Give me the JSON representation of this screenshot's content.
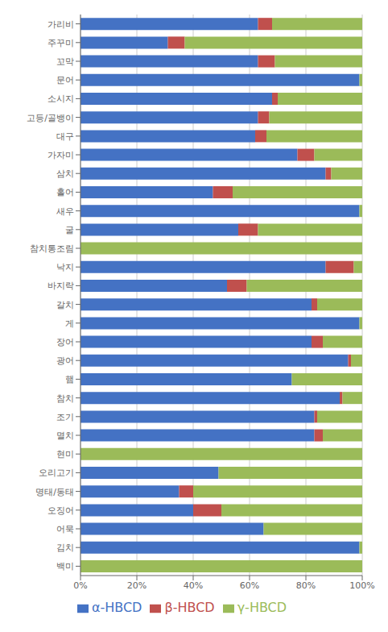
{
  "chart_data": {
    "type": "bar",
    "orientation": "horizontal",
    "stacked": true,
    "categories": [
      "가리비",
      "주꾸미",
      "꼬막",
      "문어",
      "소시지",
      "고등/골뱅이",
      "대구",
      "가자미",
      "삼치",
      "홀어",
      "새우",
      "굴",
      "참치통조림",
      "낙지",
      "바지락",
      "갈치",
      "게",
      "장어",
      "광어",
      "햄",
      "참치",
      "조기",
      "멸치",
      "현미",
      "오리고기",
      "명태/동태",
      "오징어",
      "어묵",
      "김치",
      "백미"
    ],
    "series": [
      {
        "name": "α-HBCD",
        "color": "#4472C4",
        "values": [
          63,
          31,
          63,
          99,
          68,
          63,
          62,
          77,
          87,
          47,
          99,
          56,
          0,
          87,
          52,
          82,
          99,
          82,
          95,
          75,
          92,
          83,
          83,
          0,
          49,
          35,
          40,
          65,
          99,
          0
        ]
      },
      {
        "name": "β-HBCD",
        "color": "#C0504D",
        "values": [
          5,
          6,
          6,
          0,
          2,
          4,
          4,
          6,
          2,
          7,
          0,
          7,
          0,
          10,
          7,
          2,
          0,
          4,
          1,
          0,
          1,
          1,
          3,
          0,
          0,
          5,
          10,
          0,
          0,
          0
        ]
      },
      {
        "name": "γ-HBCD",
        "color": "#9BBB59",
        "values": [
          32,
          63,
          31,
          1,
          30,
          33,
          34,
          17,
          11,
          46,
          1,
          37,
          100,
          3,
          41,
          16,
          1,
          14,
          4,
          25,
          7,
          16,
          14,
          100,
          51,
          60,
          50,
          35,
          1,
          100
        ]
      }
    ],
    "xlim": [
      0,
      100
    ],
    "xticks": [
      {
        "value": 0,
        "label": "0%"
      },
      {
        "value": 20,
        "label": "20%"
      },
      {
        "value": 40,
        "label": "40%"
      },
      {
        "value": 60,
        "label": "60%"
      },
      {
        "value": 80,
        "label": "80%"
      },
      {
        "value": 100,
        "label": "100%"
      }
    ],
    "grid": true,
    "legend": "bottom"
  }
}
